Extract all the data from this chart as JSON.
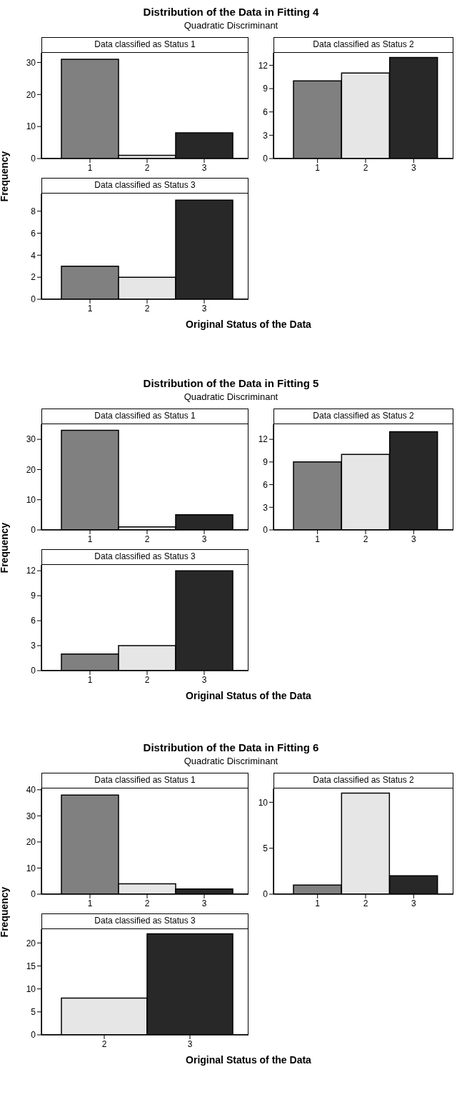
{
  "chart_data": [
    {
      "type": "bar",
      "title": "Distribution of the Data in Fitting 4",
      "subtitle": "Quadratic Discriminant",
      "ylabel": "Frequency",
      "annotations": [
        "Data classified as Status 1"
      ],
      "categories": [
        "1",
        "2",
        "3"
      ],
      "values": [
        31,
        1,
        8
      ],
      "colors": [
        "#808080",
        "#e6e6e6",
        "#282828"
      ],
      "ylim": [
        0,
        33
      ],
      "yticks": [
        0,
        10,
        20,
        30
      ]
    },
    {
      "type": "bar",
      "annotations": [
        "Data classified as Status 2"
      ],
      "categories": [
        "1",
        "2",
        "3"
      ],
      "values": [
        10,
        11,
        13
      ],
      "colors": [
        "#808080",
        "#e6e6e6",
        "#282828"
      ],
      "ylim": [
        0,
        13.6
      ],
      "yticks": [
        0,
        3,
        6,
        9,
        12
      ]
    },
    {
      "type": "bar",
      "xlabel": "Original Status of the Data",
      "annotations": [
        "Data classified as Status 3"
      ],
      "categories": [
        "1",
        "2",
        "3"
      ],
      "values": [
        3,
        2,
        9
      ],
      "colors": [
        "#808080",
        "#e6e6e6",
        "#282828"
      ],
      "ylim": [
        0,
        9.6
      ],
      "yticks": [
        0,
        2,
        4,
        6,
        8
      ]
    },
    {
      "type": "bar",
      "title": "Distribution of the Data in Fitting 5",
      "subtitle": "Quadratic Discriminant",
      "ylabel": "Frequency",
      "annotations": [
        "Data classified as Status 1"
      ],
      "categories": [
        "1",
        "2",
        "3"
      ],
      "values": [
        33,
        1,
        5
      ],
      "colors": [
        "#808080",
        "#e6e6e6",
        "#282828"
      ],
      "ylim": [
        0,
        35
      ],
      "yticks": [
        0,
        10,
        20,
        30
      ]
    },
    {
      "type": "bar",
      "annotations": [
        "Data classified as Status 2"
      ],
      "categories": [
        "1",
        "2",
        "3"
      ],
      "values": [
        9,
        10,
        13
      ],
      "colors": [
        "#808080",
        "#e6e6e6",
        "#282828"
      ],
      "ylim": [
        0,
        14
      ],
      "yticks": [
        0,
        3,
        6,
        9,
        12
      ]
    },
    {
      "type": "bar",
      "xlabel": "Original Status of the Data",
      "annotations": [
        "Data classified as Status 3"
      ],
      "categories": [
        "1",
        "2",
        "3"
      ],
      "values": [
        2,
        3,
        12
      ],
      "colors": [
        "#808080",
        "#e6e6e6",
        "#282828"
      ],
      "ylim": [
        0,
        12.7
      ],
      "yticks": [
        0,
        3,
        6,
        9,
        12
      ]
    },
    {
      "type": "bar",
      "title": "Distribution of the Data in Fitting 6",
      "subtitle": "Quadratic Discriminant",
      "ylabel": "Frequency",
      "annotations": [
        "Data classified as Status 1"
      ],
      "categories": [
        "1",
        "2",
        "3"
      ],
      "values": [
        38,
        4,
        2
      ],
      "colors": [
        "#808080",
        "#e6e6e6",
        "#282828"
      ],
      "ylim": [
        0,
        40.5
      ],
      "yticks": [
        0,
        10,
        20,
        30,
        40
      ]
    },
    {
      "type": "bar",
      "annotations": [
        "Data classified as Status 2"
      ],
      "categories": [
        "1",
        "2",
        "3"
      ],
      "values": [
        1,
        11,
        2
      ],
      "colors": [
        "#808080",
        "#e6e6e6",
        "#282828"
      ],
      "ylim": [
        0,
        11.5
      ],
      "yticks": [
        0,
        5,
        10
      ]
    },
    {
      "type": "bar",
      "xlabel": "Original Status of the Data",
      "annotations": [
        "Data classified as Status 3"
      ],
      "categories": [
        "2",
        "3"
      ],
      "values": [
        8,
        22
      ],
      "colors": [
        "#e6e6e6",
        "#282828"
      ],
      "ylim": [
        0,
        23
      ],
      "yticks": [
        0,
        5,
        10,
        15,
        20
      ]
    }
  ]
}
